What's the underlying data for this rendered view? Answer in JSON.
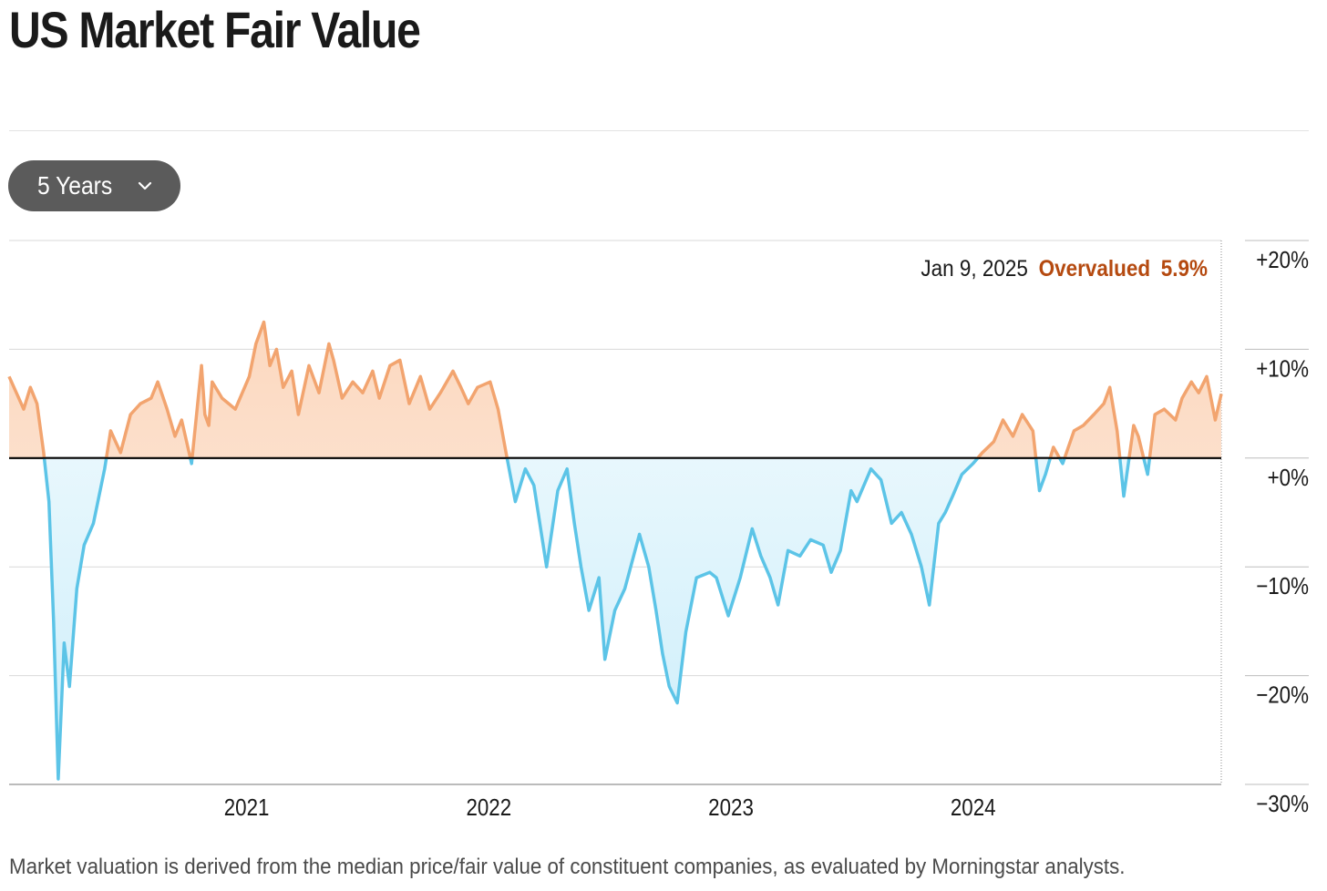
{
  "header": {
    "title": "US Market Fair Value"
  },
  "controls": {
    "range_label": "5 Years",
    "range_icon": "chevron-down-icon"
  },
  "footer": {
    "caption": "Market valuation is derived from the median price/fair value of constituent companies, as evaluated by Morningstar analysts."
  },
  "chart_data": {
    "type": "area",
    "title": "US Market Fair Value",
    "xlabel": "",
    "ylabel": "",
    "x_range": [
      "2020-01-09",
      "2025-01-09"
    ],
    "ylim": [
      -30,
      20
    ],
    "y_ticks": [
      20,
      10,
      0,
      -10,
      -20,
      -30
    ],
    "y_tick_labels": [
      "+20%",
      "+10%",
      "+0%",
      "−10%",
      "−20%",
      "−30%"
    ],
    "x_ticks": [
      "2021-01-01",
      "2022-01-01",
      "2023-01-01",
      "2024-01-01"
    ],
    "x_tick_labels": [
      "2021",
      "2022",
      "2023",
      "2024"
    ],
    "grid": "horizontal",
    "colors": {
      "over_line": "#f2a46f",
      "over_fill": "#fde3d1",
      "under_line": "#5cc4e7",
      "under_fill": "#dff3fb",
      "zero_line": "#000000",
      "annotation_value": "#b54a10"
    },
    "annotation": {
      "date_label": "Jan 9, 2025",
      "status": "Overvalued",
      "value_label": "5.9%",
      "value": 5.9
    },
    "series": [
      {
        "x": [
          "2020-01-09",
          "2020-01-20",
          "2020-01-31",
          "2020-02-10",
          "2020-02-20",
          "2020-03-01",
          "2020-03-09",
          "2020-03-16",
          "2020-03-23",
          "2020-04-01",
          "2020-04-09",
          "2020-04-20",
          "2020-05-01",
          "2020-05-15",
          "2020-06-01",
          "2020-06-10",
          "2020-06-25",
          "2020-07-10",
          "2020-07-25",
          "2020-08-10",
          "2020-08-20",
          "2020-09-03",
          "2020-09-15",
          "2020-09-25",
          "2020-10-10",
          "2020-10-25",
          "2020-10-30",
          "2020-11-05",
          "2020-11-10",
          "2020-11-25",
          "2020-12-15",
          "2021-01-05",
          "2021-01-15",
          "2021-01-27",
          "2021-02-05",
          "2021-02-15",
          "2021-02-25",
          "2021-03-10",
          "2021-03-20",
          "2021-04-05",
          "2021-04-20",
          "2021-05-05",
          "2021-05-12",
          "2021-05-25",
          "2021-06-10",
          "2021-06-25",
          "2021-07-10",
          "2021-07-20",
          "2021-08-05",
          "2021-08-20",
          "2021-09-03",
          "2021-09-20",
          "2021-10-04",
          "2021-10-20",
          "2021-11-08",
          "2021-11-20",
          "2021-12-01",
          "2021-12-15",
          "2022-01-03",
          "2022-01-15",
          "2022-01-27",
          "2022-02-10",
          "2022-02-25",
          "2022-03-10",
          "2022-03-29",
          "2022-04-15",
          "2022-04-29",
          "2022-05-10",
          "2022-05-20",
          "2022-06-01",
          "2022-06-16",
          "2022-06-25",
          "2022-07-10",
          "2022-07-25",
          "2022-08-16",
          "2022-08-30",
          "2022-09-10",
          "2022-09-20",
          "2022-09-30",
          "2022-10-12",
          "2022-10-25",
          "2022-11-10",
          "2022-11-30",
          "2022-12-10",
          "2022-12-28",
          "2023-01-15",
          "2023-02-02",
          "2023-02-15",
          "2023-03-01",
          "2023-03-13",
          "2023-03-28",
          "2023-04-15",
          "2023-05-01",
          "2023-05-20",
          "2023-06-01",
          "2023-06-15",
          "2023-07-01",
          "2023-07-10",
          "2023-07-31",
          "2023-08-15",
          "2023-08-31",
          "2023-09-15",
          "2023-09-30",
          "2023-10-15",
          "2023-10-27",
          "2023-11-10",
          "2023-11-20",
          "2023-12-01",
          "2023-12-15",
          "2024-01-01",
          "2024-01-15",
          "2024-02-01",
          "2024-02-15",
          "2024-03-01",
          "2024-03-15",
          "2024-03-31",
          "2024-04-10",
          "2024-04-19",
          "2024-05-01",
          "2024-05-15",
          "2024-06-01",
          "2024-06-15",
          "2024-07-01",
          "2024-07-16",
          "2024-07-25",
          "2024-08-05",
          "2024-08-15",
          "2024-08-30",
          "2024-09-06",
          "2024-09-20",
          "2024-10-01",
          "2024-10-15",
          "2024-11-01",
          "2024-11-11",
          "2024-11-25",
          "2024-12-06",
          "2024-12-18",
          "2024-12-31",
          "2025-01-09"
        ],
        "y": [
          7.5,
          6.0,
          4.5,
          6.5,
          5.0,
          0.5,
          -4.0,
          -15.0,
          -29.5,
          -17.0,
          -21.0,
          -12.0,
          -8.0,
          -6.0,
          -1.0,
          2.5,
          0.5,
          4.0,
          5.0,
          5.5,
          7.0,
          4.5,
          2.0,
          3.5,
          -0.5,
          8.5,
          4.0,
          3.0,
          7.0,
          5.5,
          4.5,
          7.5,
          10.5,
          12.5,
          8.5,
          10.0,
          6.5,
          8.0,
          4.0,
          8.5,
          6.0,
          10.5,
          9.0,
          5.5,
          7.0,
          6.0,
          8.0,
          5.5,
          8.5,
          9.0,
          5.0,
          7.5,
          4.5,
          6.0,
          8.0,
          6.5,
          5.0,
          6.5,
          7.0,
          4.5,
          0.5,
          -4.0,
          -1.0,
          -2.5,
          -10.0,
          -3.0,
          -1.0,
          -6.0,
          -10.0,
          -14.0,
          -11.0,
          -18.5,
          -14.0,
          -12.0,
          -7.0,
          -10.0,
          -14.0,
          -18.0,
          -21.0,
          -22.5,
          -16.0,
          -11.0,
          -10.5,
          -11.0,
          -14.5,
          -11.0,
          -6.5,
          -9.0,
          -11.0,
          -13.5,
          -8.5,
          -9.0,
          -7.5,
          -8.0,
          -10.5,
          -8.5,
          -3.0,
          -4.0,
          -1.0,
          -2.0,
          -6.0,
          -5.0,
          -7.0,
          -10.0,
          -13.5,
          -6.0,
          -5.0,
          -3.5,
          -1.5,
          -0.5,
          0.5,
          1.5,
          3.5,
          2.0,
          4.0,
          2.5,
          -3.0,
          -1.5,
          1.0,
          -0.5,
          2.5,
          3.0,
          4.0,
          5.0,
          6.5,
          2.5,
          -3.5,
          3.0,
          2.0,
          -1.5,
          4.0,
          4.5,
          3.5,
          5.5,
          7.0,
          6.0,
          7.5,
          3.5,
          5.9
        ]
      }
    ]
  }
}
